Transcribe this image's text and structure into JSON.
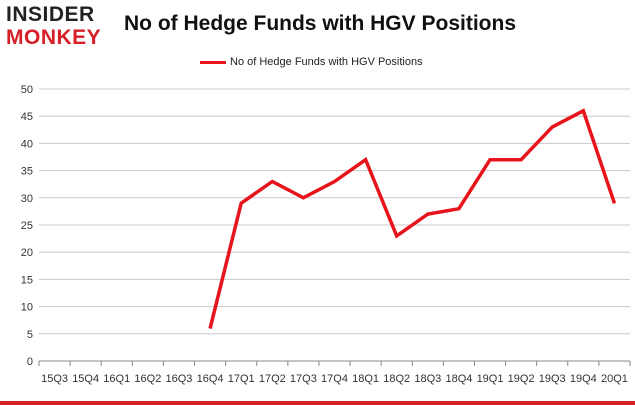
{
  "brand": {
    "line1": "INSIDER",
    "line2": "MONKEY"
  },
  "chart_data": {
    "type": "line",
    "title": "No of Hedge Funds with HGV Positions",
    "xlabel": "",
    "ylabel": "",
    "categories": [
      "15Q3",
      "15Q4",
      "16Q1",
      "16Q2",
      "16Q3",
      "16Q4",
      "17Q1",
      "17Q2",
      "17Q3",
      "17Q4",
      "18Q1",
      "18Q2",
      "18Q3",
      "18Q4",
      "19Q1",
      "19Q2",
      "19Q3",
      "19Q4",
      "20Q1"
    ],
    "series": [
      {
        "name": "No of Hedge Funds with HGV Positions",
        "values": [
          null,
          null,
          null,
          null,
          null,
          6,
          29,
          33,
          30,
          33,
          37,
          23,
          27,
          28,
          37,
          37,
          43,
          46,
          29
        ]
      }
    ],
    "ylim": [
      0,
      50
    ],
    "yticks": [
      0,
      5,
      10,
      15,
      20,
      25,
      30,
      35,
      40,
      45,
      50
    ],
    "grid": true,
    "legend_position": "top",
    "colors": {
      "line": "#e8141b",
      "grid": "#c8c8c8",
      "brand_red": "#d61f26"
    }
  }
}
